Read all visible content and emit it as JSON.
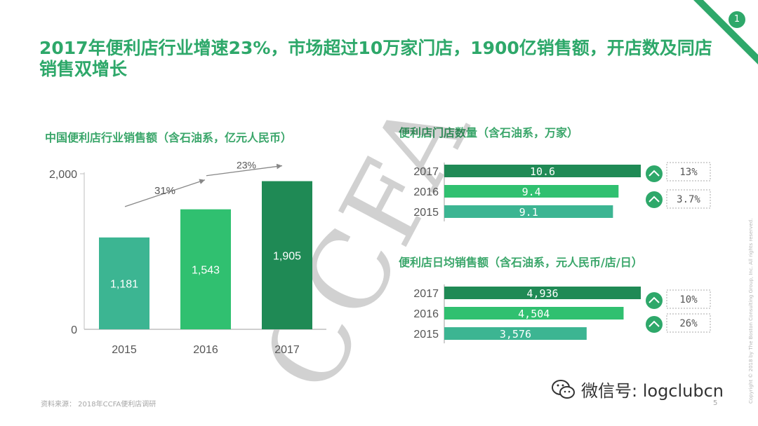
{
  "page": {
    "badge": "1",
    "page_number": "5"
  },
  "title": "2017年便利店行业增速23%，市场超过10万家门店，1900亿销售额，开店数及同店销售双增长",
  "footer": {
    "source": "资料来源：  2018年CCFA便利店调研",
    "copyright": "Copyright © 2018 by The Boston Consulting Group, Inc. All rights reserved.",
    "wechat": "微信号: logclubcn"
  },
  "watermark": "CCFA",
  "colors": {
    "green_dark": "#1f8a55",
    "green_mid": "#30c070",
    "green_light": "#3cb592",
    "accent": "#2ea86a"
  },
  "chart_data": [
    {
      "type": "bar",
      "title": "中国便利店行业销售额（含石油系，亿元人民币）",
      "categories": [
        "2015",
        "2016",
        "2017"
      ],
      "values": [
        1181,
        1543,
        1905
      ],
      "value_labels": [
        "1,181",
        "1,543",
        "1,905"
      ],
      "colors": [
        "#3cb592",
        "#30c070",
        "#1f8a55"
      ],
      "ylim": [
        0,
        2000
      ],
      "y_ticks": [
        "0",
        "2,000"
      ],
      "growth_annotations": [
        "31%",
        "23%"
      ]
    },
    {
      "type": "bar",
      "orientation": "horizontal",
      "title": "便利店门店数量（含石油系，万家）",
      "categories": [
        "2017",
        "2016",
        "2015"
      ],
      "values": [
        10.6,
        9.4,
        9.1
      ],
      "value_labels": [
        "10.6",
        "9.4",
        "9.1"
      ],
      "colors": [
        "#1f8a55",
        "#30c070",
        "#3cb592"
      ],
      "growth_labels": [
        "13%",
        "3.7%"
      ]
    },
    {
      "type": "bar",
      "orientation": "horizontal",
      "title": "便利店日均销售额（含石油系，元人民币/店/日）",
      "categories": [
        "2017",
        "2016",
        "2015"
      ],
      "values": [
        4936,
        4504,
        3576
      ],
      "value_labels": [
        "4,936",
        "4,504",
        "3,576"
      ],
      "colors": [
        "#1f8a55",
        "#30c070",
        "#3cb592"
      ],
      "growth_labels": [
        "10%",
        "26%"
      ]
    }
  ]
}
